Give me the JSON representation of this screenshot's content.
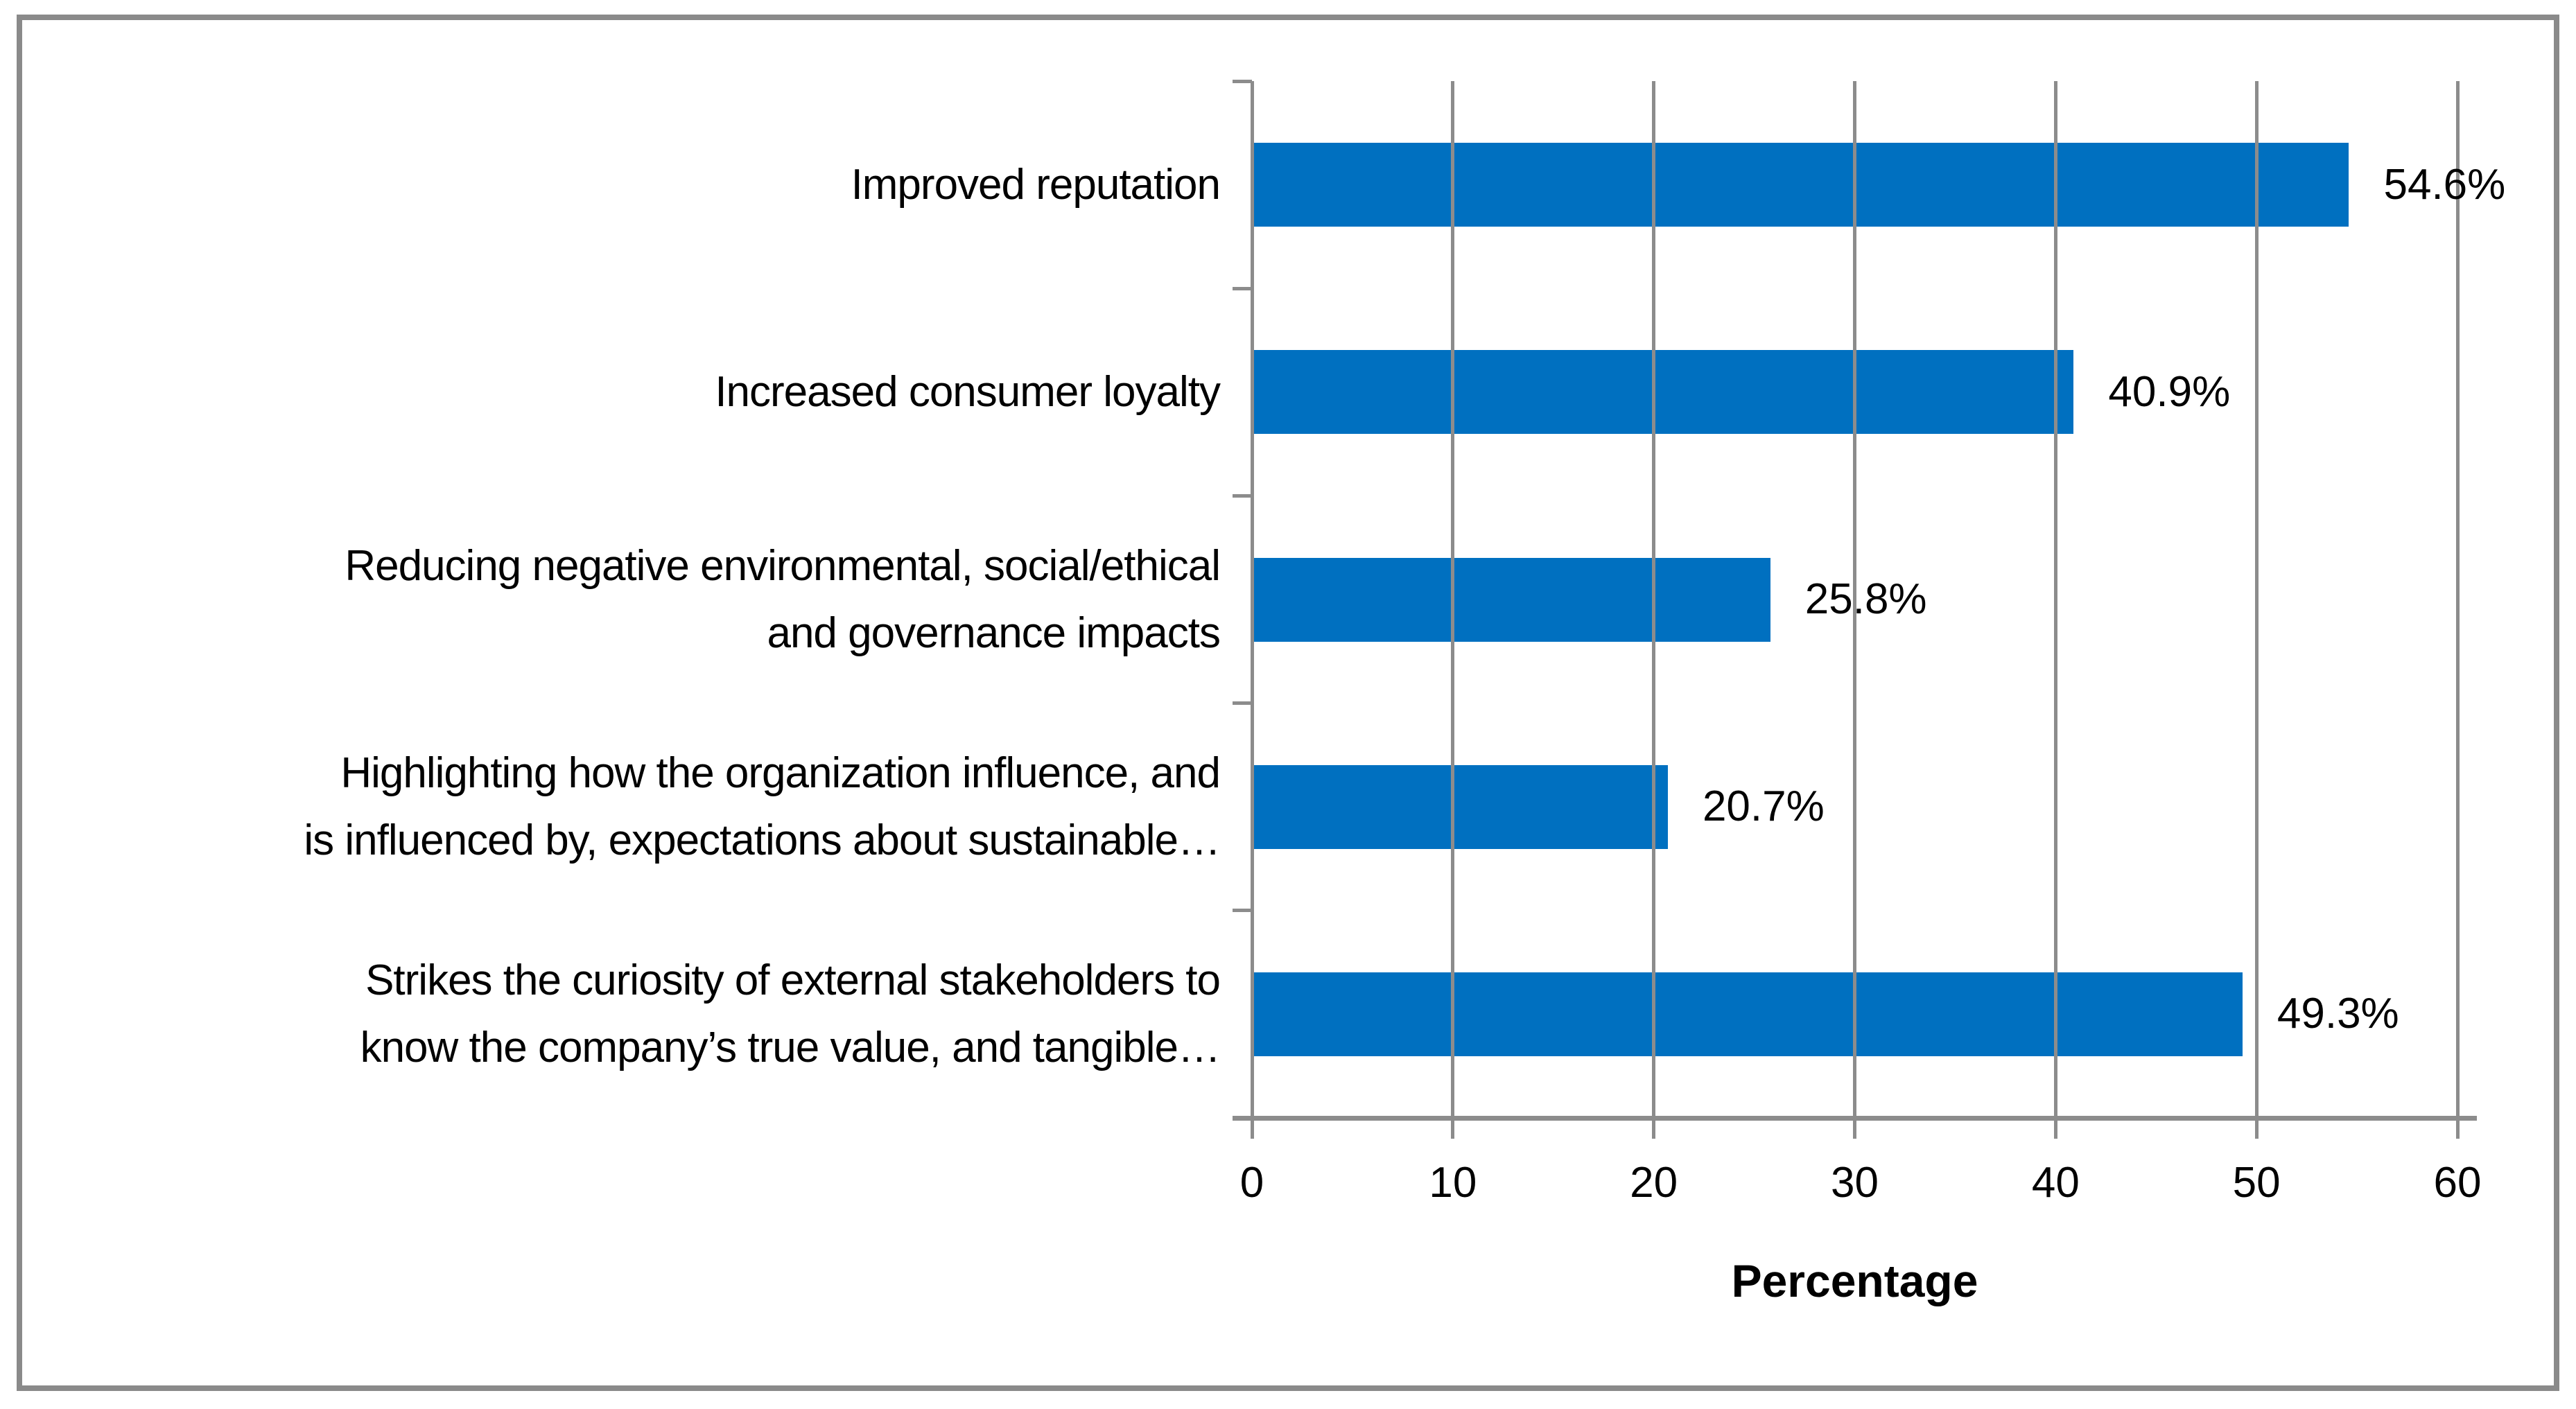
{
  "chart_data": {
    "type": "bar",
    "orientation": "horizontal",
    "title": "",
    "xlabel": "Percentage",
    "ylabel": "",
    "xlim": [
      0,
      60
    ],
    "x_ticks": [
      "0",
      "10",
      "20",
      "30",
      "40",
      "50",
      "60"
    ],
    "grid": true,
    "categories": [
      "Improved reputation",
      "Increased consumer loyalty",
      "Reducing negative environmental, social/ethical and governance impacts",
      "Highlighting how the organization influence, and is influenced by, expectations about sustainable…",
      "Strikes the curiosity of external stakeholders to know the company’s true value, and tangible…"
    ],
    "category_display": [
      "Improved reputation",
      "Increased consumer loyalty",
      "Reducing negative environmental, social/ethical\nand governance impacts",
      "Highlighting how the organization influence, and\nis influenced by, expectations about sustainable…",
      "Strikes the curiosity of external stakeholders to\nknow the company’s true value, and tangible…"
    ],
    "values": [
      54.6,
      40.9,
      25.8,
      20.7,
      49.3
    ],
    "value_labels": [
      "54.6%",
      "40.9%",
      "25.8%",
      "20.7%",
      "49.3%"
    ],
    "bar_color": "#0070c0",
    "gridline_color": "#8c8c8c",
    "axis_color": "#8c8c8c",
    "frame_border_color": "#8a8a8a",
    "text_color": "#000000"
  }
}
